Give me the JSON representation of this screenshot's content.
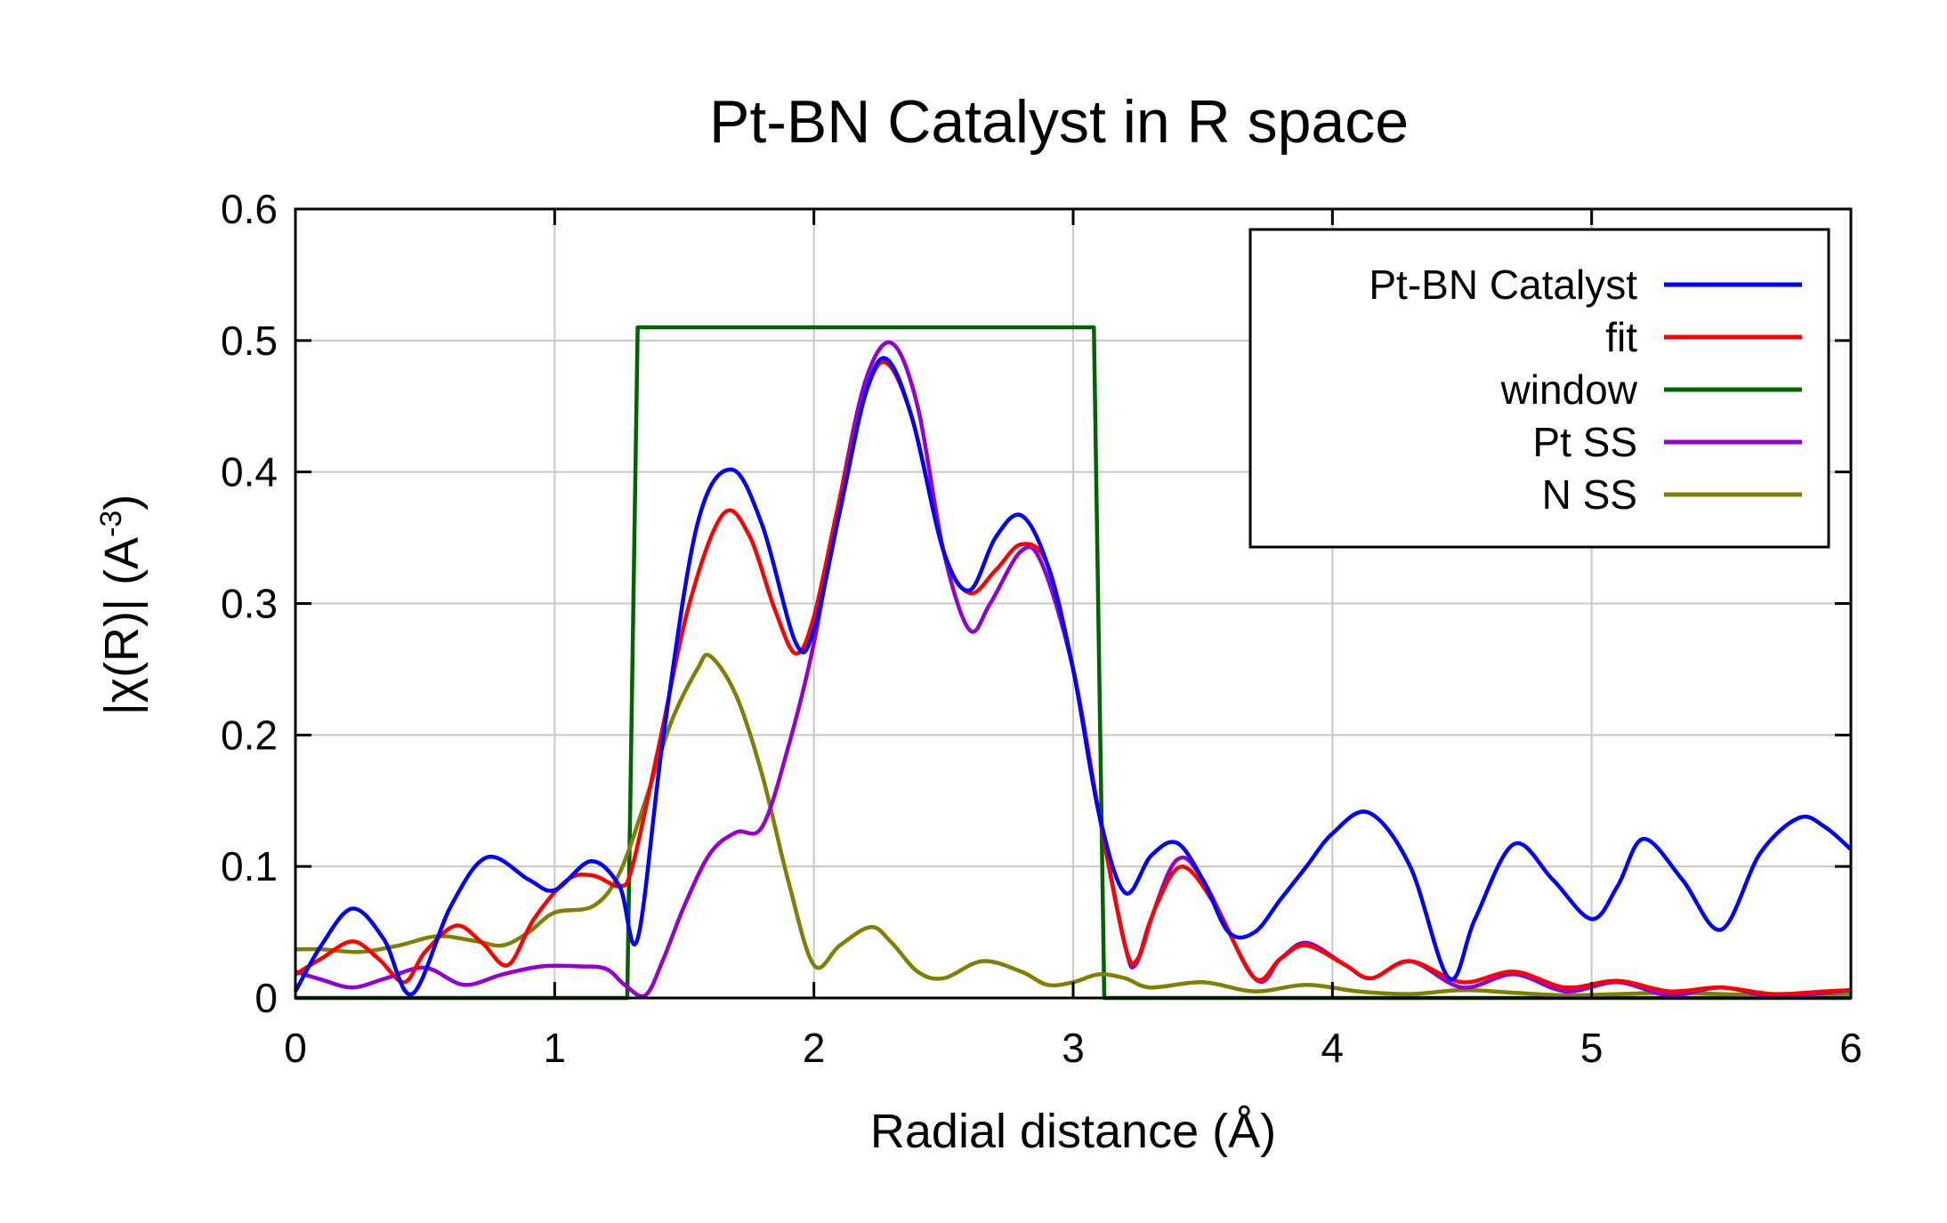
{
  "chart_data": {
    "type": "line",
    "title": "Pt-BN Catalyst in R space",
    "xlabel": "Radial distance    (Å)",
    "ylabel_main": "|χ(R)|    (A",
    "ylabel_sup": "-3",
    "ylabel_close": ")",
    "xlim": [
      0,
      6
    ],
    "ylim": [
      0,
      0.6
    ],
    "xticks": [
      "0",
      "1",
      "2",
      "3",
      "4",
      "5",
      "6"
    ],
    "yticks": [
      "0",
      "0.1",
      "0.2",
      "0.3",
      "0.4",
      "0.5",
      "0.6"
    ],
    "grid": true,
    "legend_position": "top-right",
    "series": [
      {
        "name": "Pt-BN Catalyst",
        "color": "#0000ff",
        "x": [
          0,
          0.1,
          0.22,
          0.34,
          0.45,
          0.6,
          0.74,
          0.9,
          1.0,
          1.14,
          1.25,
          1.32,
          1.42,
          1.55,
          1.68,
          1.8,
          1.93,
          2.0,
          2.1,
          2.2,
          2.28,
          2.38,
          2.5,
          2.6,
          2.7,
          2.8,
          2.9,
          3.0,
          3.1,
          3.2,
          3.3,
          3.4,
          3.5,
          3.6,
          3.7,
          3.8,
          3.9,
          4.0,
          4.14,
          4.3,
          4.45,
          4.55,
          4.7,
          4.85,
          5.0,
          5.1,
          5.2,
          5.35,
          5.5,
          5.65,
          5.8,
          5.9,
          6.0
        ],
        "y": [
          0.005,
          0.04,
          0.068,
          0.045,
          0.003,
          0.07,
          0.107,
          0.09,
          0.082,
          0.104,
          0.085,
          0.045,
          0.2,
          0.36,
          0.402,
          0.36,
          0.27,
          0.28,
          0.37,
          0.46,
          0.486,
          0.44,
          0.34,
          0.31,
          0.35,
          0.367,
          0.33,
          0.25,
          0.14,
          0.08,
          0.108,
          0.118,
          0.09,
          0.05,
          0.05,
          0.075,
          0.1,
          0.125,
          0.141,
          0.1,
          0.015,
          0.06,
          0.117,
          0.09,
          0.06,
          0.085,
          0.121,
          0.09,
          0.052,
          0.11,
          0.137,
          0.13,
          0.113
        ]
      },
      {
        "name": "fit",
        "color": "#ff0000",
        "x": [
          0,
          0.1,
          0.22,
          0.32,
          0.42,
          0.5,
          0.62,
          0.72,
          0.82,
          0.92,
          1.05,
          1.15,
          1.25,
          1.3,
          1.4,
          1.52,
          1.65,
          1.75,
          1.85,
          1.93,
          2.0,
          2.1,
          2.2,
          2.28,
          2.38,
          2.5,
          2.6,
          2.7,
          2.8,
          2.9,
          3.0,
          3.1,
          3.2,
          3.25,
          3.32,
          3.42,
          3.55,
          3.7,
          3.8,
          3.9,
          4.05,
          4.15,
          4.3,
          4.5,
          4.7,
          4.9,
          5.1,
          5.3,
          5.5,
          5.7,
          5.9,
          6.0
        ],
        "y": [
          0.018,
          0.03,
          0.043,
          0.03,
          0.012,
          0.035,
          0.055,
          0.042,
          0.025,
          0.06,
          0.09,
          0.093,
          0.085,
          0.1,
          0.19,
          0.3,
          0.368,
          0.352,
          0.295,
          0.262,
          0.29,
          0.38,
          0.46,
          0.483,
          0.44,
          0.34,
          0.308,
          0.325,
          0.345,
          0.33,
          0.25,
          0.14,
          0.04,
          0.03,
          0.07,
          0.1,
          0.07,
          0.015,
          0.03,
          0.04,
          0.025,
          0.015,
          0.028,
          0.012,
          0.02,
          0.008,
          0.013,
          0.005,
          0.008,
          0.003,
          0.005,
          0.006
        ]
      },
      {
        "name": "window",
        "color": "#006400",
        "x": [
          0,
          1.28,
          1.32,
          3.08,
          3.12,
          6.0
        ],
        "y": [
          0,
          0,
          0.51,
          0.51,
          0,
          0
        ]
      },
      {
        "name": "Pt SS",
        "color": "#9400d3",
        "x": [
          0,
          0.1,
          0.22,
          0.35,
          0.5,
          0.65,
          0.8,
          0.95,
          1.1,
          1.2,
          1.27,
          1.35,
          1.42,
          1.5,
          1.6,
          1.7,
          1.8,
          1.9,
          2.0,
          2.1,
          2.2,
          2.3,
          2.4,
          2.5,
          2.6,
          2.68,
          2.8,
          2.88,
          3.0,
          3.1,
          3.2,
          3.24,
          3.3,
          3.4,
          3.5,
          3.7,
          3.8,
          3.9,
          4.05,
          4.15,
          4.3,
          4.5,
          4.7,
          4.9,
          5.1,
          5.3,
          5.5,
          5.7,
          5.9,
          6.0
        ],
        "y": [
          0.02,
          0.014,
          0.008,
          0.015,
          0.023,
          0.01,
          0.018,
          0.024,
          0.024,
          0.022,
          0.01,
          0.002,
          0.03,
          0.07,
          0.11,
          0.126,
          0.13,
          0.19,
          0.27,
          0.38,
          0.47,
          0.498,
          0.45,
          0.34,
          0.28,
          0.3,
          0.34,
          0.33,
          0.25,
          0.14,
          0.04,
          0.025,
          0.06,
          0.105,
          0.09,
          0.015,
          0.03,
          0.042,
          0.025,
          0.015,
          0.028,
          0.008,
          0.018,
          0.005,
          0.012,
          0.002,
          0.008,
          0.001,
          0.004,
          0.006
        ]
      },
      {
        "name": "N SS",
        "color": "#808000",
        "x": [
          0,
          0.1,
          0.25,
          0.4,
          0.55,
          0.7,
          0.8,
          0.9,
          1.0,
          1.15,
          1.25,
          1.35,
          1.45,
          1.55,
          1.6,
          1.7,
          1.8,
          1.9,
          2.0,
          2.1,
          2.22,
          2.3,
          2.4,
          2.5,
          2.65,
          2.8,
          2.9,
          3.0,
          3.1,
          3.2,
          3.3,
          3.5,
          3.7,
          3.9,
          4.1,
          4.3,
          4.5,
          4.7,
          4.9,
          5.1,
          5.3,
          5.5,
          5.7,
          5.9,
          6.0
        ],
        "y": [
          0.037,
          0.037,
          0.035,
          0.04,
          0.047,
          0.043,
          0.04,
          0.05,
          0.065,
          0.07,
          0.095,
          0.15,
          0.21,
          0.25,
          0.26,
          0.23,
          0.17,
          0.09,
          0.025,
          0.04,
          0.054,
          0.042,
          0.02,
          0.015,
          0.028,
          0.02,
          0.01,
          0.012,
          0.018,
          0.015,
          0.008,
          0.012,
          0.005,
          0.01,
          0.005,
          0.003,
          0.006,
          0.004,
          0.002,
          0.003,
          0.004,
          0.003,
          0.002,
          0.003,
          0.003
        ]
      }
    ]
  }
}
